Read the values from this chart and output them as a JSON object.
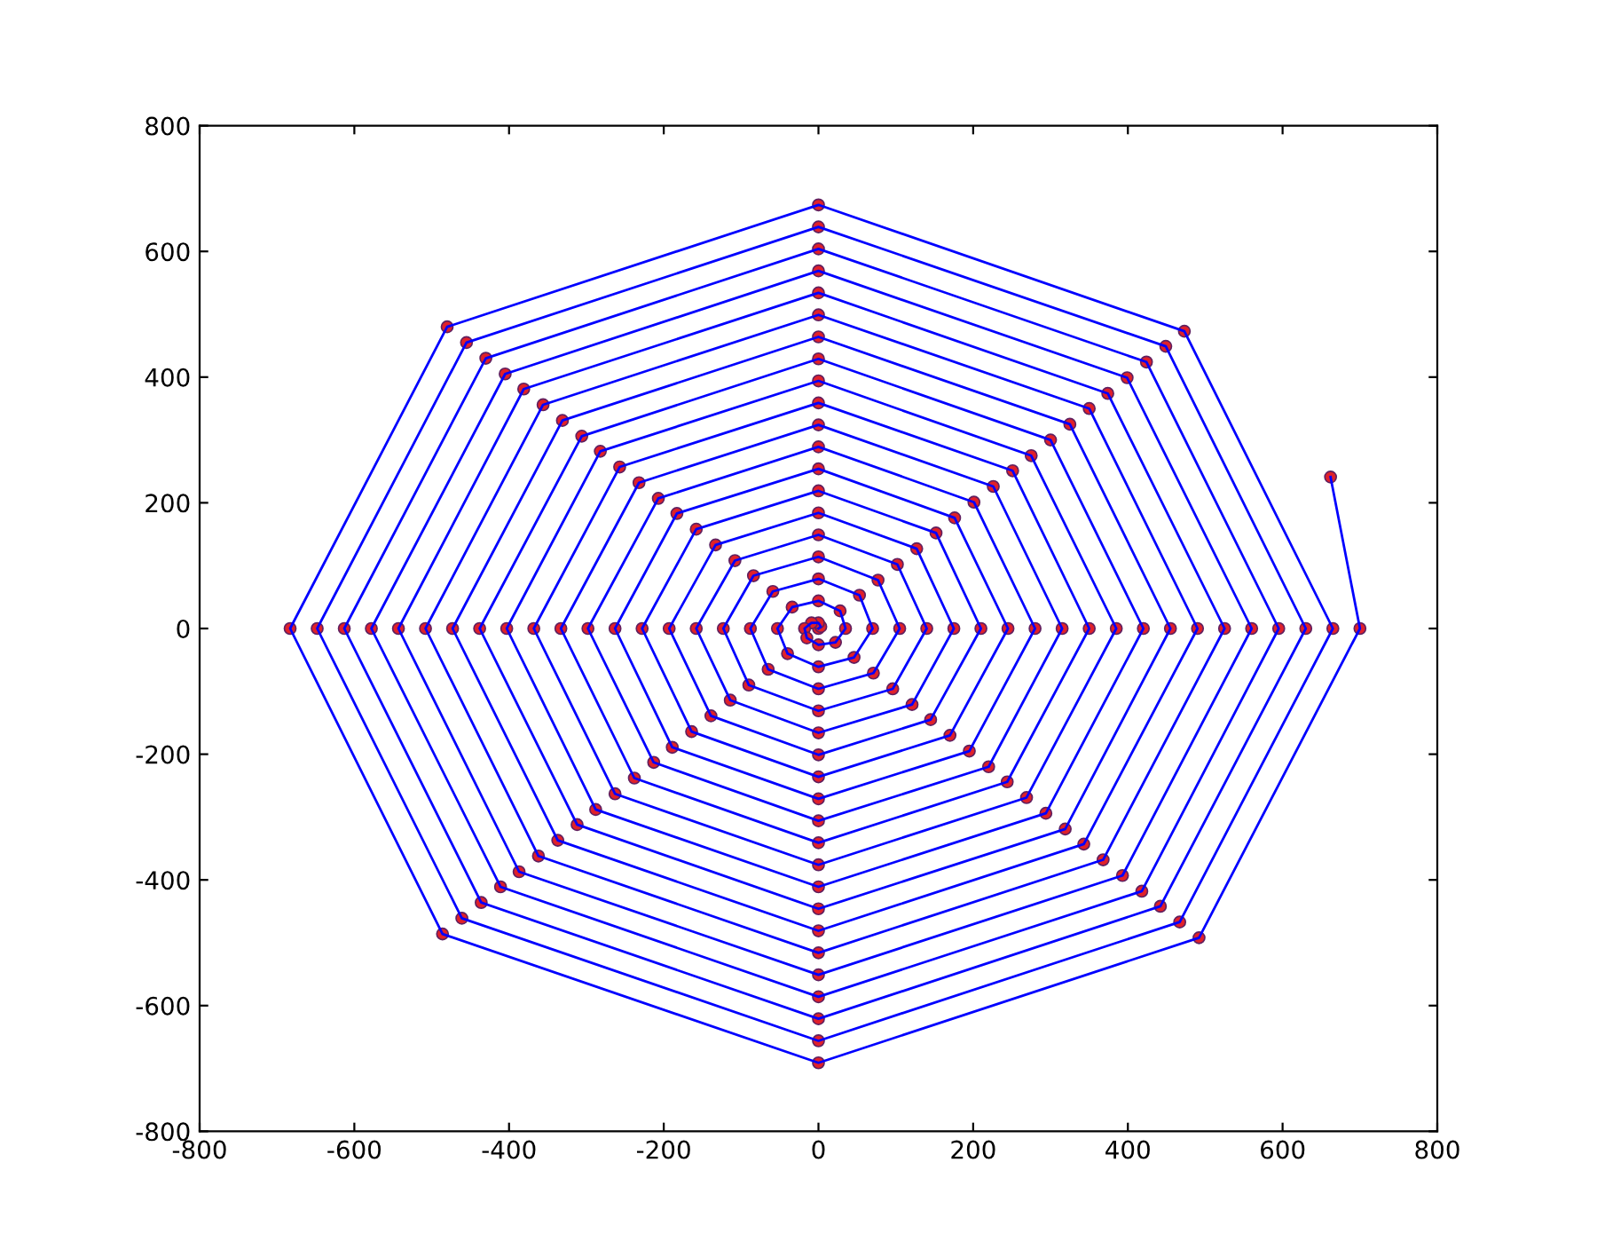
{
  "chart_data": {
    "type": "line",
    "xlim": [
      -800,
      800
    ],
    "ylim": [
      -800,
      800
    ],
    "xticks": [
      -800,
      -600,
      -400,
      -200,
      0,
      200,
      400,
      600,
      800
    ],
    "yticks": [
      -800,
      -600,
      -400,
      -200,
      0,
      200,
      400,
      600,
      800
    ],
    "grid": false,
    "legend": false,
    "series": [
      {
        "color": "#0000ff",
        "marker": "none",
        "line_style": "solid",
        "x": [
          0,
          3,
          0,
          -9,
          -18,
          -15,
          0,
          22,
          35,
          28,
          0,
          -34,
          -53,
          -40,
          0,
          46,
          70,
          53,
          0,
          -59,
          -88,
          -65,
          0,
          71,
          105,
          77,
          0,
          -84,
          -123,
          -90,
          0,
          96,
          140,
          102,
          0,
          -108,
          -158,
          -114,
          0,
          121,
          175,
          127,
          0,
          -133,
          -193,
          -139,
          0,
          145,
          210,
          152,
          0,
          -158,
          -228,
          -164,
          0,
          170,
          245,
          176,
          0,
          -183,
          -263,
          -189,
          0,
          195,
          280,
          201,
          0,
          -207,
          -298,
          -213,
          0,
          220,
          315,
          226,
          0,
          -232,
          -333,
          -238,
          0,
          244,
          350,
          251,
          0,
          -257,
          -368,
          -263,
          0,
          269,
          385,
          275,
          0,
          -282,
          -403,
          -288,
          0,
          294,
          420,
          300,
          0,
          -306,
          -438,
          -312,
          0,
          319,
          455,
          325,
          0,
          -331,
          -473,
          -337,
          0,
          343,
          490,
          350,
          0,
          -356,
          -508,
          -362,
          0,
          368,
          525,
          374,
          0,
          -381,
          -543,
          -387,
          0,
          393,
          560,
          399,
          0,
          -405,
          -578,
          -411,
          0,
          418,
          595,
          424,
          0,
          -430,
          -613,
          -436,
          0,
          442,
          630,
          449,
          0,
          -455,
          -648,
          -461,
          0,
          467,
          665,
          473,
          0,
          -480,
          -683,
          -486,
          0,
          492,
          700,
          662
        ],
        "values": [
          0,
          3,
          9,
          9,
          0,
          -15,
          -26,
          -22,
          0,
          28,
          44,
          34,
          0,
          -40,
          -61,
          -46,
          0,
          53,
          79,
          59,
          0,
          -65,
          -96,
          -71,
          0,
          77,
          114,
          84,
          0,
          -90,
          -131,
          -96,
          0,
          102,
          149,
          108,
          0,
          -114,
          -166,
          -121,
          0,
          127,
          184,
          133,
          0,
          -139,
          -201,
          -145,
          0,
          152,
          219,
          158,
          0,
          -164,
          -236,
          -170,
          0,
          176,
          254,
          183,
          0,
          -189,
          -271,
          -195,
          0,
          201,
          289,
          207,
          0,
          -213,
          -306,
          -220,
          0,
          226,
          324,
          232,
          0,
          -238,
          -341,
          -244,
          0,
          251,
          359,
          257,
          0,
          -263,
          -376,
          -269,
          0,
          275,
          394,
          282,
          0,
          -288,
          -411,
          -294,
          0,
          300,
          429,
          306,
          0,
          -312,
          -446,
          -319,
          0,
          325,
          464,
          331,
          0,
          -337,
          -481,
          -343,
          0,
          350,
          499,
          356,
          0,
          -362,
          -516,
          -368,
          0,
          374,
          534,
          381,
          0,
          -387,
          -551,
          -393,
          0,
          399,
          569,
          405,
          0,
          -411,
          -586,
          -418,
          0,
          424,
          604,
          430,
          0,
          -436,
          -621,
          -442,
          0,
          449,
          639,
          455,
          0,
          -461,
          -656,
          -467,
          0,
          473,
          674,
          480,
          0,
          -486,
          -691,
          -492,
          0,
          241
        ]
      },
      {
        "type": "scatter",
        "color": "#e0202a",
        "marker": "circle",
        "x": [
          0,
          3,
          0,
          -9,
          -18,
          -15,
          0,
          22,
          35,
          28,
          0,
          -34,
          -53,
          -40,
          0,
          46,
          70,
          53,
          0,
          -59,
          -88,
          -65,
          0,
          71,
          105,
          77,
          0,
          -84,
          -123,
          -90,
          0,
          96,
          140,
          102,
          0,
          -108,
          -158,
          -114,
          0,
          121,
          175,
          127,
          0,
          -133,
          -193,
          -139,
          0,
          145,
          210,
          152,
          0,
          -158,
          -228,
          -164,
          0,
          170,
          245,
          176,
          0,
          -183,
          -263,
          -189,
          0,
          195,
          280,
          201,
          0,
          -207,
          -298,
          -213,
          0,
          220,
          315,
          226,
          0,
          -232,
          -333,
          -238,
          0,
          244,
          350,
          251,
          0,
          -257,
          -368,
          -263,
          0,
          269,
          385,
          275,
          0,
          -282,
          -403,
          -288,
          0,
          294,
          420,
          300,
          0,
          -306,
          -438,
          -312,
          0,
          319,
          455,
          325,
          0,
          -331,
          -473,
          -337,
          0,
          343,
          490,
          350,
          0,
          -356,
          -508,
          -362,
          0,
          368,
          525,
          374,
          0,
          -381,
          -543,
          -387,
          0,
          393,
          560,
          399,
          0,
          -405,
          -578,
          -411,
          0,
          418,
          595,
          424,
          0,
          -430,
          -613,
          -436,
          0,
          442,
          630,
          449,
          0,
          -455,
          -648,
          -461,
          0,
          467,
          665,
          473,
          0,
          -480,
          -683,
          -486,
          0,
          492,
          700,
          662
        ],
        "values": [
          0,
          3,
          9,
          9,
          0,
          -15,
          -26,
          -22,
          0,
          28,
          44,
          34,
          0,
          -40,
          -61,
          -46,
          0,
          53,
          79,
          59,
          0,
          -65,
          -96,
          -71,
          0,
          77,
          114,
          84,
          0,
          -90,
          -131,
          -96,
          0,
          102,
          149,
          108,
          0,
          -114,
          -166,
          -121,
          0,
          127,
          184,
          133,
          0,
          -139,
          -201,
          -145,
          0,
          152,
          219,
          158,
          0,
          -164,
          -236,
          -170,
          0,
          176,
          254,
          183,
          0,
          -189,
          -271,
          -195,
          0,
          201,
          289,
          207,
          0,
          -213,
          -306,
          -220,
          0,
          226,
          324,
          232,
          0,
          -238,
          -341,
          -244,
          0,
          251,
          359,
          257,
          0,
          -263,
          -376,
          -269,
          0,
          275,
          394,
          282,
          0,
          -288,
          -411,
          -294,
          0,
          300,
          429,
          306,
          0,
          -312,
          -446,
          -319,
          0,
          325,
          464,
          331,
          0,
          -337,
          -481,
          -343,
          0,
          350,
          499,
          356,
          0,
          -362,
          -516,
          -368,
          0,
          374,
          534,
          381,
          0,
          -387,
          -551,
          -393,
          0,
          399,
          569,
          405,
          0,
          -411,
          -586,
          -418,
          0,
          424,
          604,
          430,
          0,
          -436,
          -621,
          -442,
          0,
          449,
          639,
          455,
          0,
          -461,
          -656,
          -467,
          0,
          473,
          674,
          480,
          0,
          -486,
          -691,
          -492,
          0,
          241
        ]
      }
    ]
  }
}
